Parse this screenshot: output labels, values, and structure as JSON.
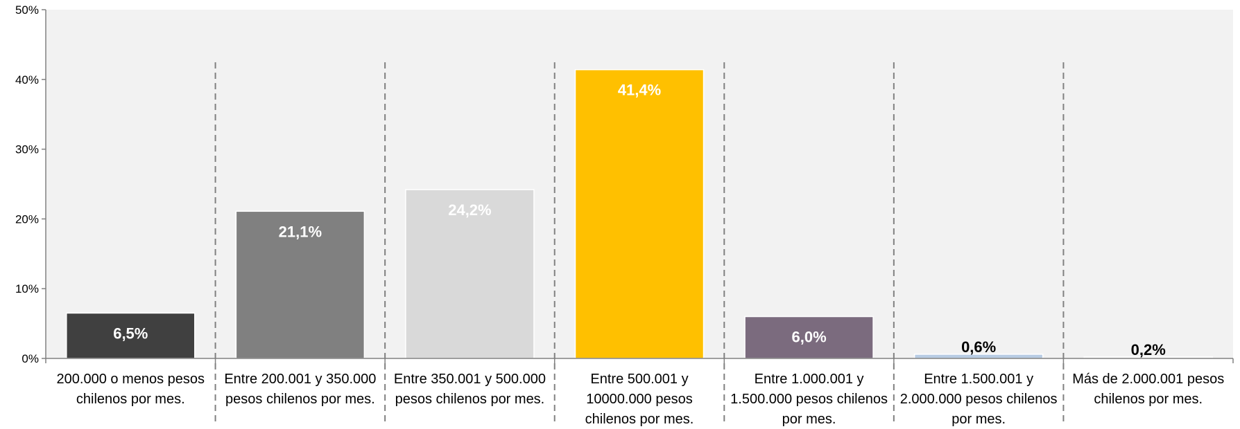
{
  "chart_data": {
    "type": "bar",
    "categories": [
      [
        "200.000 o menos pesos",
        "chilenos por mes."
      ],
      [
        "Entre 200.001 y 350.000",
        "pesos chilenos por mes."
      ],
      [
        "Entre 350.001 y 500.000",
        "pesos chilenos por mes."
      ],
      [
        "Entre 500.001 y",
        "10000.000 pesos",
        "chilenos por mes."
      ],
      [
        "Entre 1.000.001 y",
        "1.500.000 pesos chilenos",
        "por mes."
      ],
      [
        "Entre 1.500.001 y",
        "2.000.000 pesos chilenos",
        "por mes."
      ],
      [
        "Más de 2.000.001 pesos",
        "chilenos por mes."
      ]
    ],
    "values": [
      6.5,
      21.1,
      24.2,
      41.4,
      6.0,
      0.6,
      0.2
    ],
    "data_labels": [
      "6,5%",
      "21,1%",
      "24,2%",
      "41,4%",
      "6,0%",
      "0,6%",
      "0,2%"
    ],
    "bar_colors": [
      "#404040",
      "#808080",
      "#d9d9d9",
      "#ffc000",
      "#7b6b7e",
      "#b8cce4",
      "#f2f2f2"
    ],
    "label_colors": [
      "#ffffff",
      "#ffffff",
      "#ffffff",
      "#ffffff",
      "#ffffff",
      "#000000",
      "#000000"
    ],
    "ylim": [
      0,
      50
    ],
    "yticks": [
      0,
      10,
      20,
      30,
      40,
      50
    ],
    "ytick_labels": [
      "0%",
      "10%",
      "20%",
      "30%",
      "40%",
      "50%"
    ],
    "plot_background": "#f2f2f2",
    "separator_color": "#808080",
    "axis_color": "#808080",
    "grid": false,
    "title": "",
    "xlabel": "",
    "ylabel": ""
  }
}
